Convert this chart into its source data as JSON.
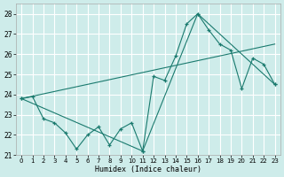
{
  "xlabel": "Humidex (Indice chaleur)",
  "xlim": [
    -0.5,
    23.5
  ],
  "ylim": [
    21.0,
    28.5
  ],
  "yticks": [
    21,
    22,
    23,
    24,
    25,
    26,
    27,
    28
  ],
  "xticks": [
    0,
    1,
    2,
    3,
    4,
    5,
    6,
    7,
    8,
    9,
    10,
    11,
    12,
    13,
    14,
    15,
    16,
    17,
    18,
    19,
    20,
    21,
    22,
    23
  ],
  "background_color": "#ceecea",
  "grid_color": "#ffffff",
  "line_color": "#1a7a6e",
  "series1_x": [
    0,
    1,
    2,
    3,
    4,
    5,
    6,
    7,
    8,
    9,
    10,
    11,
    12,
    13,
    14,
    15,
    16,
    17,
    18,
    19,
    20,
    21,
    22,
    23
  ],
  "series1_y": [
    23.8,
    23.9,
    22.8,
    22.6,
    22.1,
    21.3,
    22.0,
    22.4,
    21.5,
    22.3,
    22.6,
    21.2,
    24.9,
    24.7,
    25.9,
    27.5,
    28.0,
    27.2,
    26.5,
    26.2,
    24.3,
    25.8,
    25.5,
    24.5
  ],
  "series2_x": [
    0,
    23
  ],
  "series2_y": [
    23.8,
    26.5
  ],
  "series3_x": [
    0,
    11,
    16,
    23
  ],
  "series3_y": [
    23.8,
    21.2,
    28.0,
    24.5
  ]
}
